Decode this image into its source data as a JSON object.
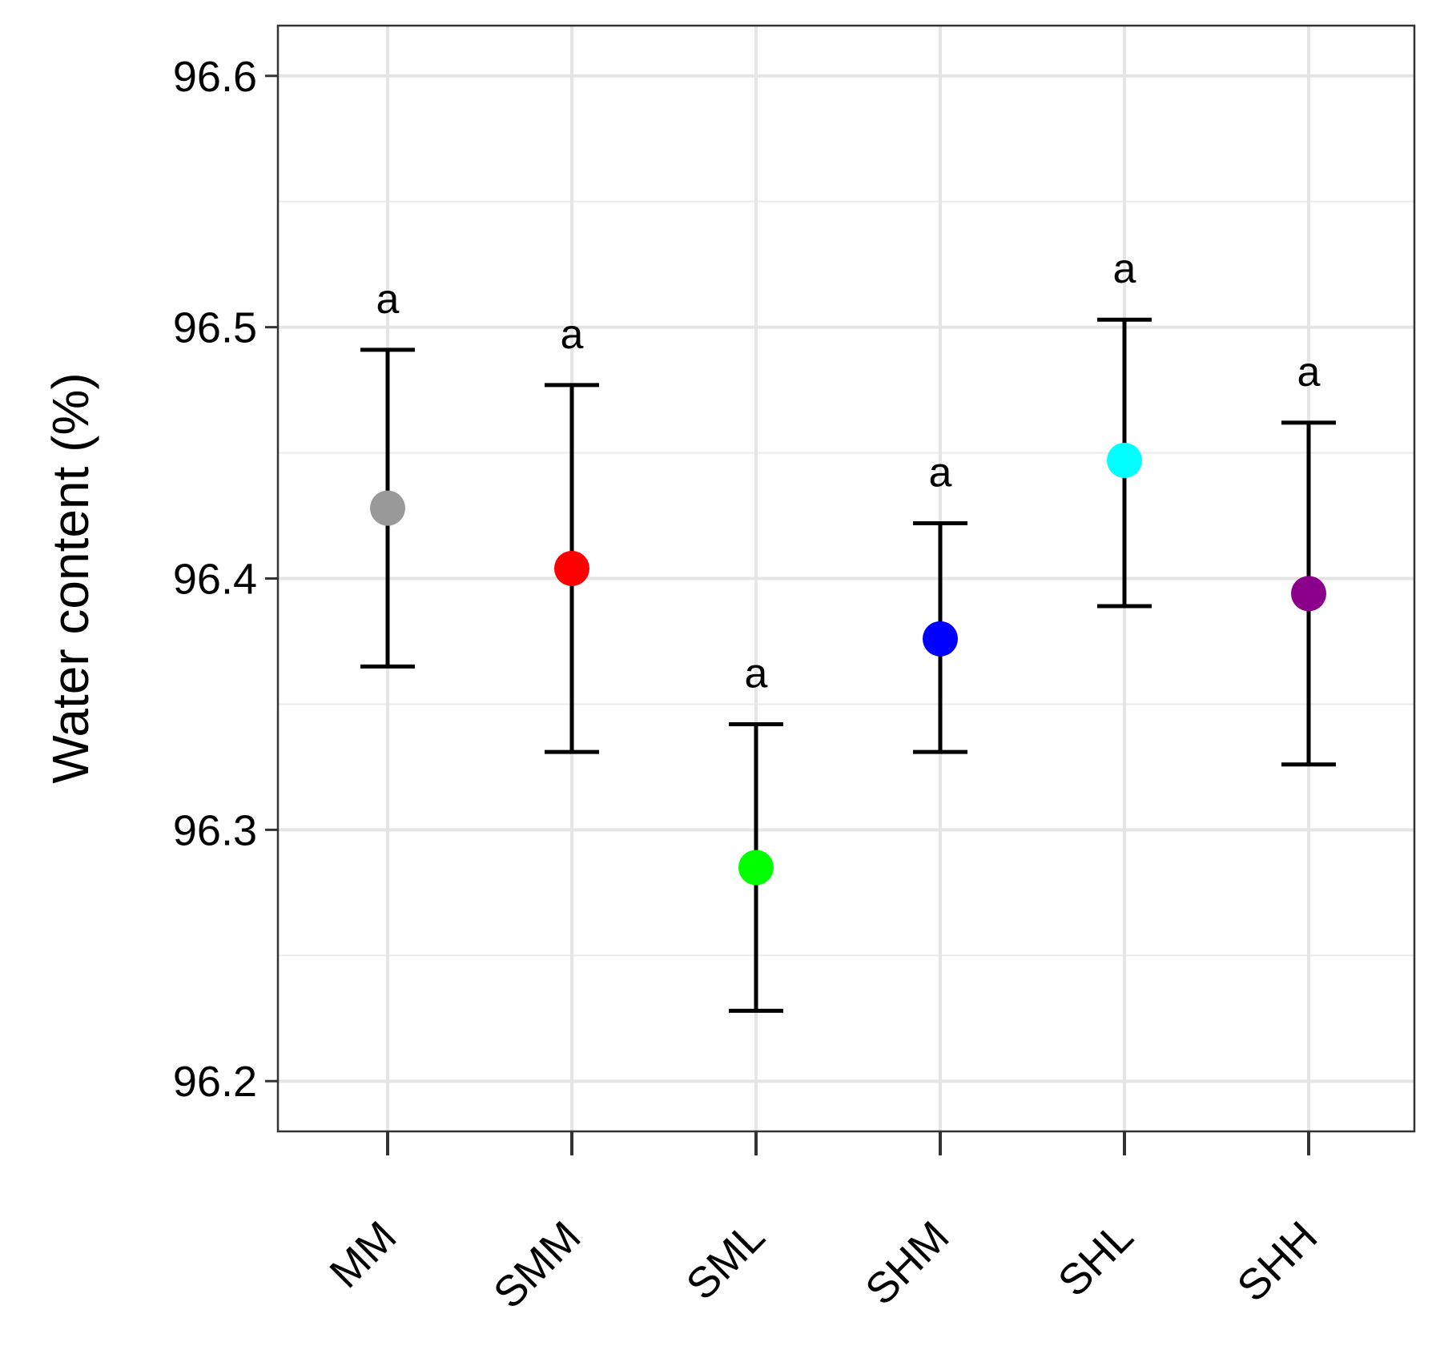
{
  "chart_data": {
    "type": "scatter",
    "subtype": "point-with-error-bars",
    "title": "",
    "xlabel": "",
    "ylabel": "Water content (%)",
    "ylim": [
      96.18,
      96.62
    ],
    "yticks": [
      96.2,
      96.3,
      96.4,
      96.5,
      96.6
    ],
    "ytick_labels": [
      "96.2",
      "96.3",
      "96.4",
      "96.5",
      "96.6"
    ],
    "grid": true,
    "legend": "none",
    "categories": [
      "MM",
      "SMM",
      "SML",
      "SHM",
      "SHL",
      "SHH"
    ],
    "means": [
      96.428,
      96.404,
      96.285,
      96.376,
      96.447,
      96.394
    ],
    "lower": [
      96.365,
      96.331,
      96.228,
      96.331,
      96.389,
      96.326
    ],
    "upper": [
      96.491,
      96.477,
      96.342,
      96.422,
      96.503,
      96.462
    ],
    "significance_letters": [
      "a",
      "a",
      "a",
      "a",
      "a",
      "a"
    ],
    "colors": [
      "#999999",
      "#ff0000",
      "#00ff00",
      "#0000ff",
      "#00ffff",
      "#8b008b"
    ]
  }
}
